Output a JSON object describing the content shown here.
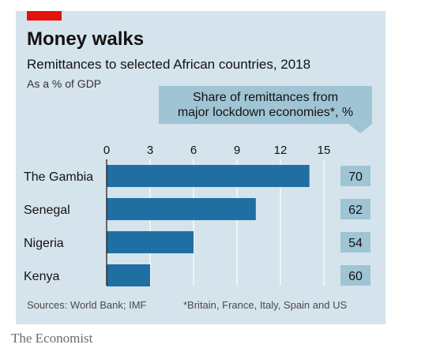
{
  "title": "Money walks",
  "subtitle": "Remittances to selected African countries, 2018",
  "unit_label": "As a % of GDP",
  "share_box": {
    "line1": "Share of remittances from",
    "line2": "major lockdown economies*, %"
  },
  "source": "Sources: World Bank; IMF",
  "footnote": "*Britain, France, Italy, Spain and US",
  "brand": "The Economist",
  "colors": {
    "background": "#d5e3ec",
    "bar": "#1f6fa3",
    "share_box": "#9fc4d4",
    "accent_red": "#e3120b"
  },
  "chart_data": {
    "type": "bar",
    "orientation": "horizontal",
    "categories": [
      "The Gambia",
      "Senegal",
      "Nigeria",
      "Kenya"
    ],
    "values": [
      14.0,
      10.3,
      6.0,
      3.0
    ],
    "share_values": [
      "70",
      "62",
      "54",
      "60"
    ],
    "xticks": [
      0,
      3,
      6,
      9,
      12,
      15
    ],
    "xlim": [
      0,
      15
    ],
    "grid": true
  }
}
